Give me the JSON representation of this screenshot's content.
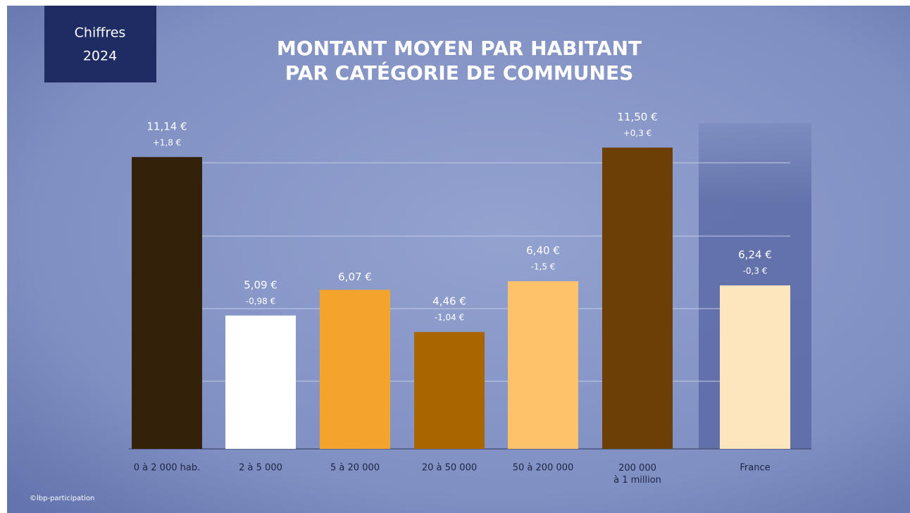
{
  "badge": [
    "Chiffres",
    "2024"
  ],
  "footer": "©lbp-participation",
  "chart_data": {
    "type": "bar",
    "title": [
      "MONTANT MOYEN PAR HABITANT",
      "PAR CATÉGORIE DE COMMUNES"
    ],
    "categories": [
      "0 à 2 000 hab.",
      "2 à 5 000",
      "5 à 20 000",
      "20 à 50 000",
      "50 à 200 000",
      "200 000\nà 1 million",
      "France"
    ],
    "values": [
      11.14,
      5.09,
      6.07,
      4.46,
      6.4,
      11.5,
      6.24
    ],
    "value_labels": [
      "11,14 €",
      "5,09 €",
      "6,07 €",
      "4,46 €",
      "6,40 €",
      "11,50 €",
      "6,24 €"
    ],
    "change_labels": [
      "+1,8 €",
      "-0,98 €",
      "",
      "-1,04 €",
      "-1,5 €",
      "+0,3 €",
      "-0,3 €"
    ],
    "colors": [
      "#33210a",
      "#ffffff",
      "#f2a42c",
      "#a86500",
      "#fdc26a",
      "#6b3f05",
      "#fde5bd"
    ],
    "ylim": [
      0,
      12.4
    ]
  }
}
